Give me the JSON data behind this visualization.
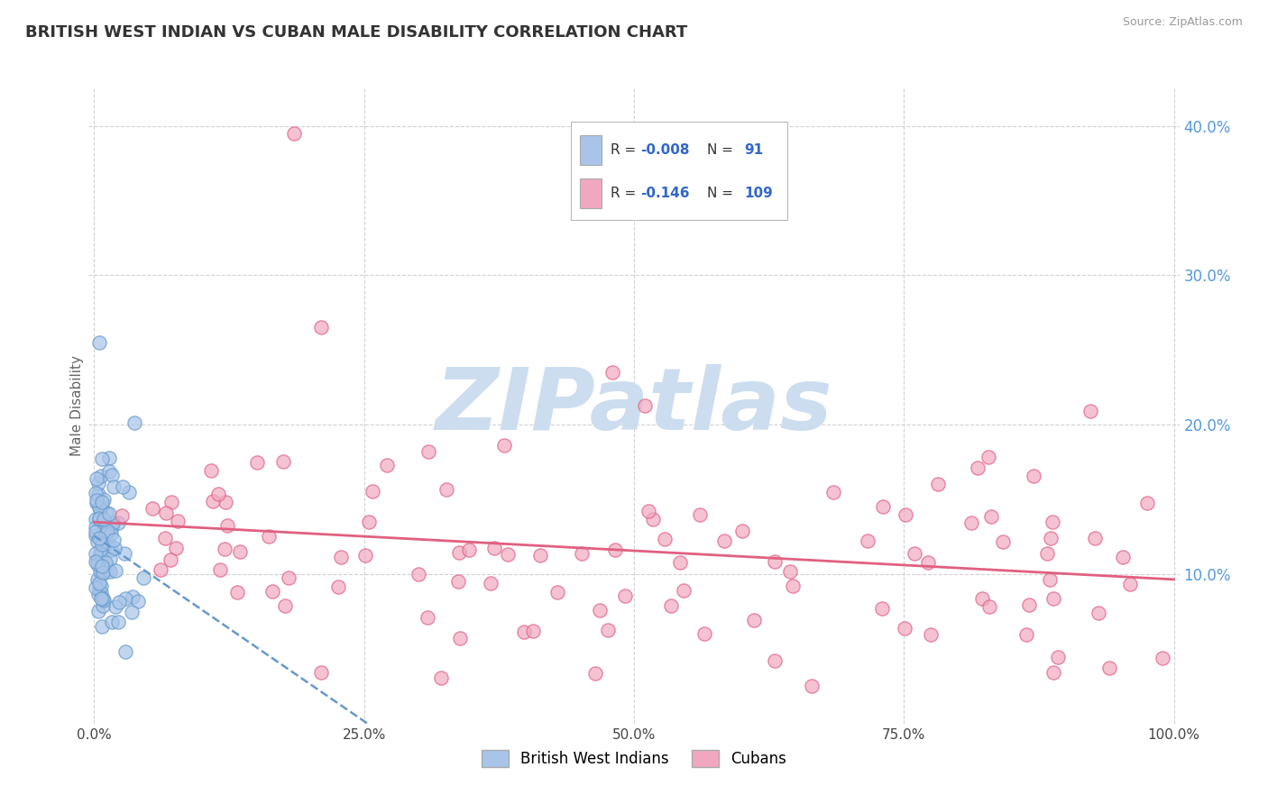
{
  "title": "BRITISH WEST INDIAN VS CUBAN MALE DISABILITY CORRELATION CHART",
  "source": "Source: ZipAtlas.com",
  "ylabel": "Male Disability",
  "color_bwi": "#a8c4e8",
  "color_cuban": "#f0a8c0",
  "color_bwi_line": "#6699cc",
  "color_cuban_line": "#e06080",
  "background_color": "#ffffff",
  "grid_color": "#cccccc",
  "watermark": "ZIPatlas",
  "watermark_color": "#ccddf0",
  "legend_r1": "R = -0.008",
  "legend_n1": "91",
  "legend_r2": "R =  -0.146",
  "legend_n2": "109"
}
